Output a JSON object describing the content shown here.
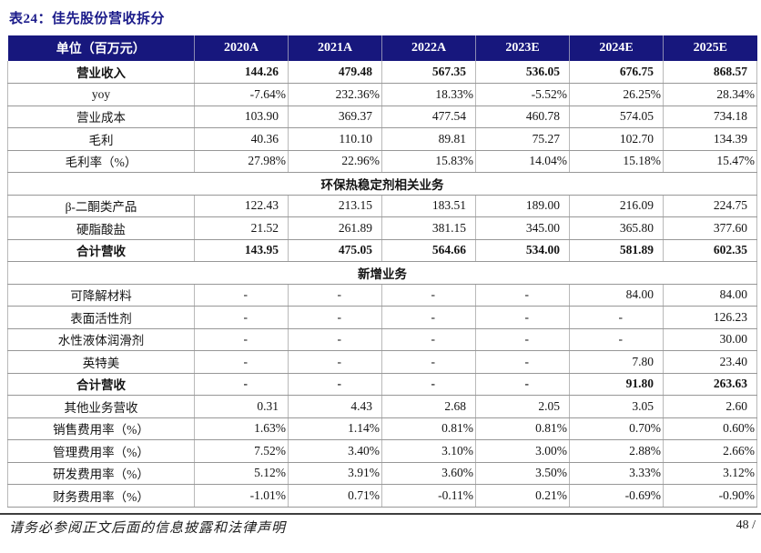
{
  "title": "表24：佳先股份营收拆分",
  "colors": {
    "header_bg": "#17177D",
    "title_text": "#1B1B8A"
  },
  "table": {
    "unit_header": "单位（百万元）",
    "columns": [
      "2020A",
      "2021A",
      "2022A",
      "2023E",
      "2024E",
      "2025E"
    ],
    "rows": [
      {
        "label": "营业收入",
        "bold": true,
        "values": [
          "144.26",
          "479.48",
          "567.35",
          "536.05",
          "676.75",
          "868.57"
        ]
      },
      {
        "label": "yoy",
        "bold": false,
        "values": [
          "-7.64%",
          "232.36%",
          "18.33%",
          "-5.52%",
          "26.25%",
          "28.34%"
        ]
      },
      {
        "label": "营业成本",
        "bold": false,
        "values": [
          "103.90",
          "369.37",
          "477.54",
          "460.78",
          "574.05",
          "734.18"
        ]
      },
      {
        "label": "毛利",
        "bold": false,
        "values": [
          "40.36",
          "110.10",
          "89.81",
          "75.27",
          "102.70",
          "134.39"
        ]
      },
      {
        "label": "毛利率（%）",
        "bold": false,
        "values": [
          "27.98%",
          "22.96%",
          "15.83%",
          "14.04%",
          "15.18%",
          "15.47%"
        ]
      },
      {
        "section": "环保热稳定剂相关业务"
      },
      {
        "label": "β-二酮类产品",
        "bold": false,
        "values": [
          "122.43",
          "213.15",
          "183.51",
          "189.00",
          "216.09",
          "224.75"
        ]
      },
      {
        "label": "硬脂酸盐",
        "bold": false,
        "values": [
          "21.52",
          "261.89",
          "381.15",
          "345.00",
          "365.80",
          "377.60"
        ]
      },
      {
        "label": "合计营收",
        "bold": true,
        "values": [
          "143.95",
          "475.05",
          "564.66",
          "534.00",
          "581.89",
          "602.35"
        ]
      },
      {
        "section": "新增业务"
      },
      {
        "label": "可降解材料",
        "bold": false,
        "values": [
          "-",
          "-",
          "-",
          "-",
          "84.00",
          "84.00"
        ]
      },
      {
        "label": "表面活性剂",
        "bold": false,
        "values": [
          "-",
          "-",
          "-",
          "-",
          "-",
          "126.23"
        ]
      },
      {
        "label": "水性液体润滑剂",
        "bold": false,
        "values": [
          "-",
          "-",
          "-",
          "-",
          "-",
          "30.00"
        ]
      },
      {
        "label": "英特美",
        "bold": false,
        "values": [
          "-",
          "-",
          "-",
          "-",
          "7.80",
          "23.40"
        ]
      },
      {
        "label": "合计营收",
        "bold": true,
        "values": [
          "-",
          "-",
          "-",
          "-",
          "91.80",
          "263.63"
        ]
      },
      {
        "label": "其他业务营收",
        "bold": false,
        "values": [
          "0.31",
          "4.43",
          "2.68",
          "2.05",
          "3.05",
          "2.60"
        ]
      },
      {
        "label": "销售费用率（%）",
        "bold": false,
        "values": [
          "1.63%",
          "1.14%",
          "0.81%",
          "0.81%",
          "0.70%",
          "0.60%"
        ]
      },
      {
        "label": "管理费用率（%）",
        "bold": false,
        "values": [
          "7.52%",
          "3.40%",
          "3.10%",
          "3.00%",
          "2.88%",
          "2.66%"
        ]
      },
      {
        "label": "研发费用率（%）",
        "bold": false,
        "values": [
          "5.12%",
          "3.91%",
          "3.60%",
          "3.50%",
          "3.33%",
          "3.12%"
        ]
      },
      {
        "label": "财务费用率（%）",
        "bold": false,
        "values": [
          "-1.01%",
          "0.71%",
          "-0.11%",
          "0.21%",
          "-0.69%",
          "-0.90%"
        ]
      }
    ]
  },
  "footer": {
    "disclaimer": "请务必参阅正文后面的信息披露和法律声明",
    "page_number": "48 /"
  }
}
